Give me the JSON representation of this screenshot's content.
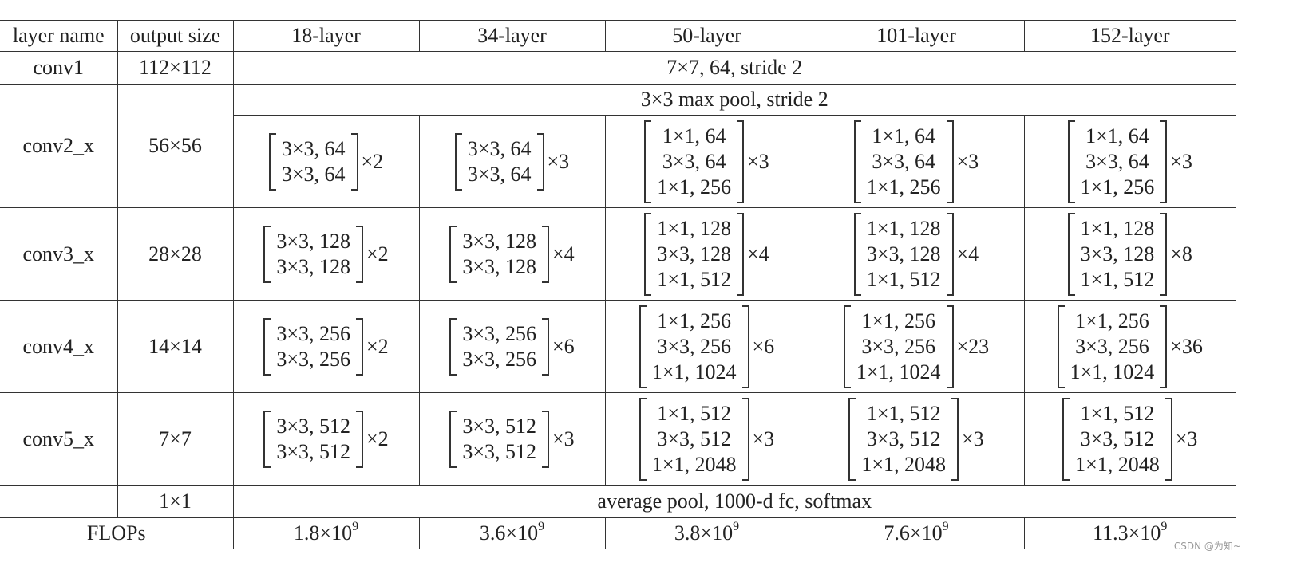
{
  "header": {
    "layer_name": "layer name",
    "output_size": "output size",
    "models": [
      "18-layer",
      "34-layer",
      "50-layer",
      "101-layer",
      "152-layer"
    ]
  },
  "conv1": {
    "name": "conv1",
    "size": "112×112",
    "spec": "7×7, 64, stride 2"
  },
  "conv2_pool": "3×3 max pool, stride 2",
  "stages": [
    {
      "name": "conv2_x",
      "size": "56×56",
      "blocks": [
        {
          "lines": [
            "3×3, 64",
            "3×3, 64"
          ],
          "rep": "×2"
        },
        {
          "lines": [
            "3×3, 64",
            "3×3, 64"
          ],
          "rep": "×3"
        },
        {
          "lines": [
            "1×1, 64",
            "3×3, 64",
            "1×1, 256"
          ],
          "rep": "×3"
        },
        {
          "lines": [
            "1×1, 64",
            "3×3, 64",
            "1×1, 256"
          ],
          "rep": "×3"
        },
        {
          "lines": [
            "1×1, 64",
            "3×3, 64",
            "1×1, 256"
          ],
          "rep": "×3"
        }
      ]
    },
    {
      "name": "conv3_x",
      "size": "28×28",
      "blocks": [
        {
          "lines": [
            "3×3, 128",
            "3×3, 128"
          ],
          "rep": "×2"
        },
        {
          "lines": [
            "3×3, 128",
            "3×3, 128"
          ],
          "rep": "×4"
        },
        {
          "lines": [
            "1×1, 128",
            "3×3, 128",
            "1×1, 512"
          ],
          "rep": "×4"
        },
        {
          "lines": [
            "1×1, 128",
            "3×3, 128",
            "1×1, 512"
          ],
          "rep": "×4"
        },
        {
          "lines": [
            "1×1, 128",
            "3×3, 128",
            "1×1, 512"
          ],
          "rep": "×8"
        }
      ]
    },
    {
      "name": "conv4_x",
      "size": "14×14",
      "blocks": [
        {
          "lines": [
            "3×3, 256",
            "3×3, 256"
          ],
          "rep": "×2"
        },
        {
          "lines": [
            "3×3, 256",
            "3×3, 256"
          ],
          "rep": "×6"
        },
        {
          "lines": [
            "1×1, 256",
            "3×3, 256",
            "1×1, 1024"
          ],
          "rep": "×6"
        },
        {
          "lines": [
            "1×1, 256",
            "3×3, 256",
            "1×1, 1024"
          ],
          "rep": "×23"
        },
        {
          "lines": [
            "1×1, 256",
            "3×3, 256",
            "1×1, 1024"
          ],
          "rep": "×36"
        }
      ]
    },
    {
      "name": "conv5_x",
      "size": "7×7",
      "blocks": [
        {
          "lines": [
            "3×3, 512",
            "3×3, 512"
          ],
          "rep": "×2"
        },
        {
          "lines": [
            "3×3, 512",
            "3×3, 512"
          ],
          "rep": "×3"
        },
        {
          "lines": [
            "1×1, 512",
            "3×3, 512",
            "1×1, 2048"
          ],
          "rep": "×3"
        },
        {
          "lines": [
            "1×1, 512",
            "3×3, 512",
            "1×1, 2048"
          ],
          "rep": "×3"
        },
        {
          "lines": [
            "1×1, 512",
            "3×3, 512",
            "1×1, 2048"
          ],
          "rep": "×3"
        }
      ]
    }
  ],
  "final": {
    "size": "1×1",
    "spec": "average pool, 1000-d fc, softmax"
  },
  "flops": {
    "label": "FLOPs",
    "values": [
      {
        "mantissa": "1.8×10",
        "exp": "9"
      },
      {
        "mantissa": "3.6×10",
        "exp": "9"
      },
      {
        "mantissa": "3.8×10",
        "exp": "9"
      },
      {
        "mantissa": "7.6×10",
        "exp": "9"
      },
      {
        "mantissa": "11.3×10",
        "exp": "9"
      }
    ]
  },
  "watermark": "CSDN @为知~"
}
